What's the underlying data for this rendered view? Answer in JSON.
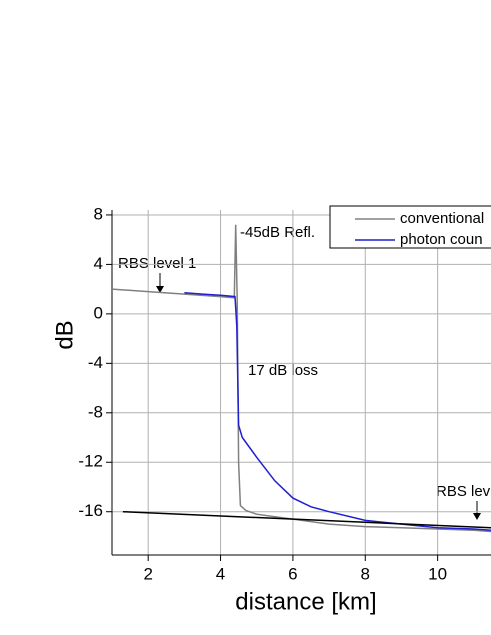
{
  "chart_data": {
    "type": "line",
    "xlabel": "distance [km]",
    "ylabel": "dB",
    "xlim": [
      1,
      12
    ],
    "xticks": [
      2,
      4,
      6,
      8,
      10
    ],
    "ylim": [
      -19.5,
      8.4
    ],
    "yticks": [
      8,
      4,
      0,
      -4,
      -8,
      -12,
      -16
    ],
    "grid": true,
    "series": [
      {
        "name": "conventional",
        "color": "#808080",
        "x": [
          1.0,
          2.0,
          3.0,
          4.0,
          4.38,
          4.42,
          4.46,
          4.5,
          4.55,
          4.7,
          5.0,
          5.5,
          6.0,
          7.0,
          8.0,
          9.0,
          10.0,
          11.0,
          11.5
        ],
        "values": [
          2.0,
          1.8,
          1.6,
          1.4,
          1.3,
          7.2,
          1.2,
          -12.0,
          -15.5,
          -15.9,
          -16.2,
          -16.4,
          -16.6,
          -17.0,
          -17.2,
          -17.3,
          -17.4,
          -17.5,
          -17.6
        ]
      },
      {
        "name": "photon coun",
        "color": "#1f1fd0",
        "x": [
          3.0,
          3.5,
          4.0,
          4.4,
          4.45,
          4.5,
          4.6,
          5.0,
          5.5,
          6.0,
          6.5,
          7.0,
          8.0,
          9.0,
          10.0,
          11.0,
          11.5
        ],
        "values": [
          1.7,
          1.6,
          1.5,
          1.4,
          -1.0,
          -9.0,
          -10.0,
          -11.6,
          -13.5,
          -14.9,
          -15.6,
          -16.0,
          -16.7,
          -17.0,
          -17.3,
          -17.4,
          -17.5
        ]
      }
    ],
    "fit_line": {
      "color": "#000000",
      "x": [
        1.3,
        11.5
      ],
      "values": [
        -16.0,
        -17.3
      ]
    },
    "annotations": [
      "-45dB Refl.",
      "RBS level 1",
      "17 dB loss",
      "RBS lev"
    ]
  }
}
